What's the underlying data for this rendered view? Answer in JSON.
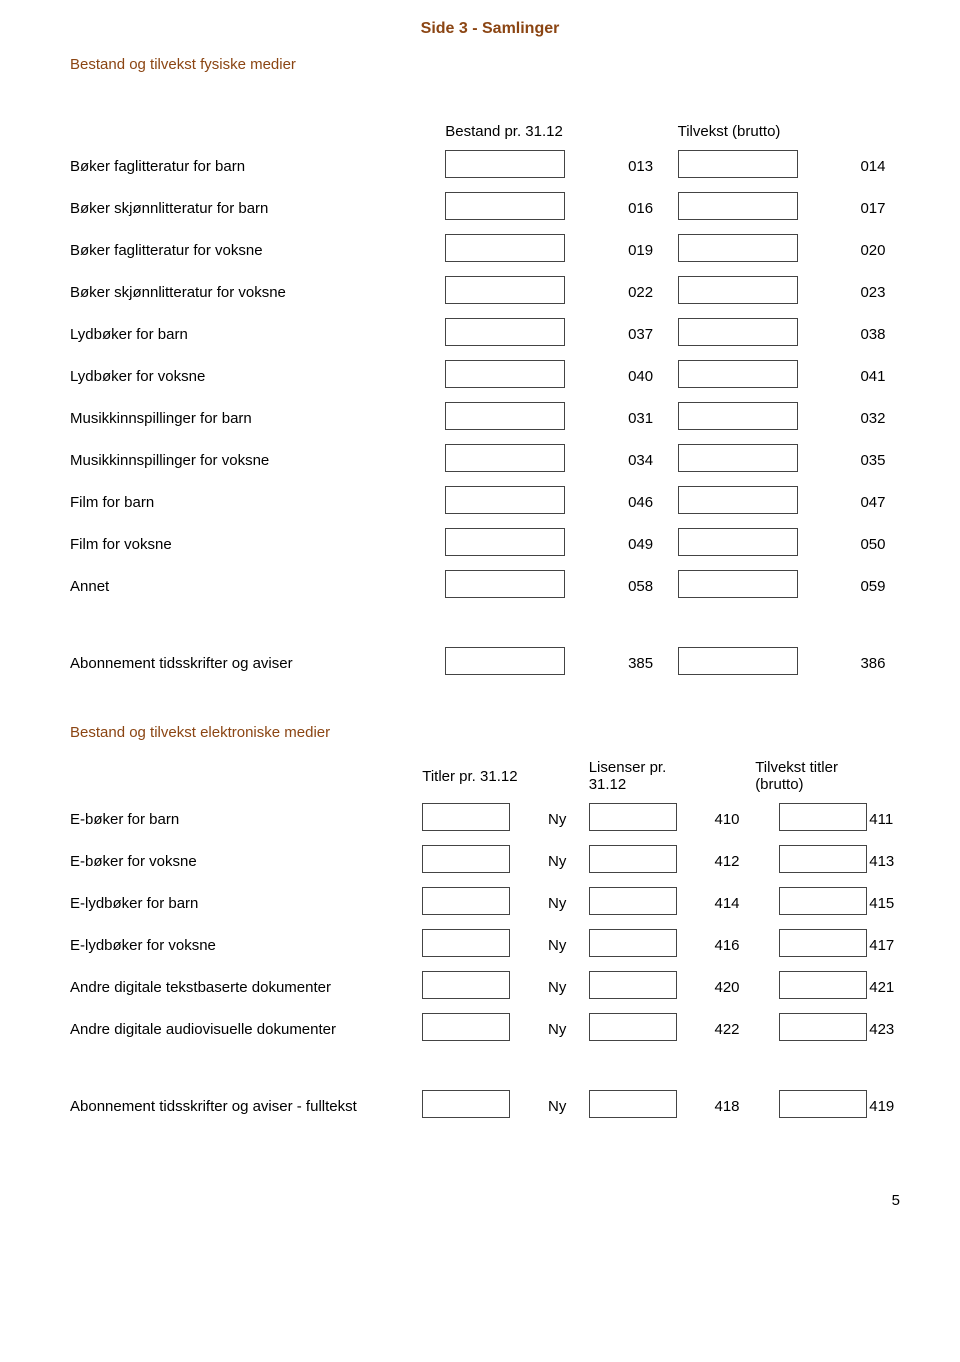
{
  "page_title": "Side 3 - Samlinger",
  "section1_heading": "Bestand og tilvekst fysiske medier",
  "section1_col1": "Bestand pr. 31.12",
  "section1_col2": "Tilvekst (brutto)",
  "section1_rows": [
    {
      "label": "Bøker faglitteratur for barn",
      "code1": "013",
      "code2": "014"
    },
    {
      "label": "Bøker skjønnlitteratur for barn",
      "code1": "016",
      "code2": "017"
    },
    {
      "label": "Bøker faglitteratur for voksne",
      "code1": "019",
      "code2": "020"
    },
    {
      "label": "Bøker skjønnlitteratur for voksne",
      "code1": "022",
      "code2": "023"
    },
    {
      "label": "Lydbøker for barn",
      "code1": "037",
      "code2": "038"
    },
    {
      "label": "Lydbøker for voksne",
      "code1": "040",
      "code2": "041"
    },
    {
      "label": "Musikkinnspillinger for barn",
      "code1": "031",
      "code2": "032"
    },
    {
      "label": "Musikkinnspillinger for voksne",
      "code1": "034",
      "code2": "035"
    },
    {
      "label": "Film for barn",
      "code1": "046",
      "code2": "047"
    },
    {
      "label": "Film for voksne",
      "code1": "049",
      "code2": "050"
    },
    {
      "label": "Annet",
      "code1": "058",
      "code2": "059"
    }
  ],
  "section1_extra": {
    "label": "Abonnement tidsskrifter og aviser",
    "code1": "385",
    "code2": "386"
  },
  "section2_heading": "Bestand og tilvekst elektroniske medier",
  "section2_col1": "Titler pr. 31.12",
  "section2_col2": "Lisenser pr. 31.12",
  "section2_col3": "Tilvekst titler (brutto)",
  "section2_rows": [
    {
      "label": "E-bøker for barn",
      "c1": "Ny",
      "c2": "410",
      "c3": "411"
    },
    {
      "label": "E-bøker for voksne",
      "c1": "Ny",
      "c2": "412",
      "c3": "413"
    },
    {
      "label": "E-lydbøker for barn",
      "c1": "Ny",
      "c2": "414",
      "c3": "415"
    },
    {
      "label": "E-lydbøker for voksne",
      "c1": "Ny",
      "c2": "416",
      "c3": "417"
    },
    {
      "label": "Andre digitale tekstbaserte dokumenter",
      "c1": "Ny",
      "c2": "420",
      "c3": "421"
    },
    {
      "label": "Andre digitale audiovisuelle dokumenter",
      "c1": "Ny",
      "c2": "422",
      "c3": "423"
    }
  ],
  "section2_extra": {
    "label": "Abonnement tidsskrifter og aviser - fulltekst",
    "c1": "Ny",
    "c2": "418",
    "c3": "419"
  },
  "page_number": "5",
  "colors": {
    "heading": "#8b4513",
    "text": "#000000",
    "border": "#444444",
    "background": "#ffffff"
  }
}
